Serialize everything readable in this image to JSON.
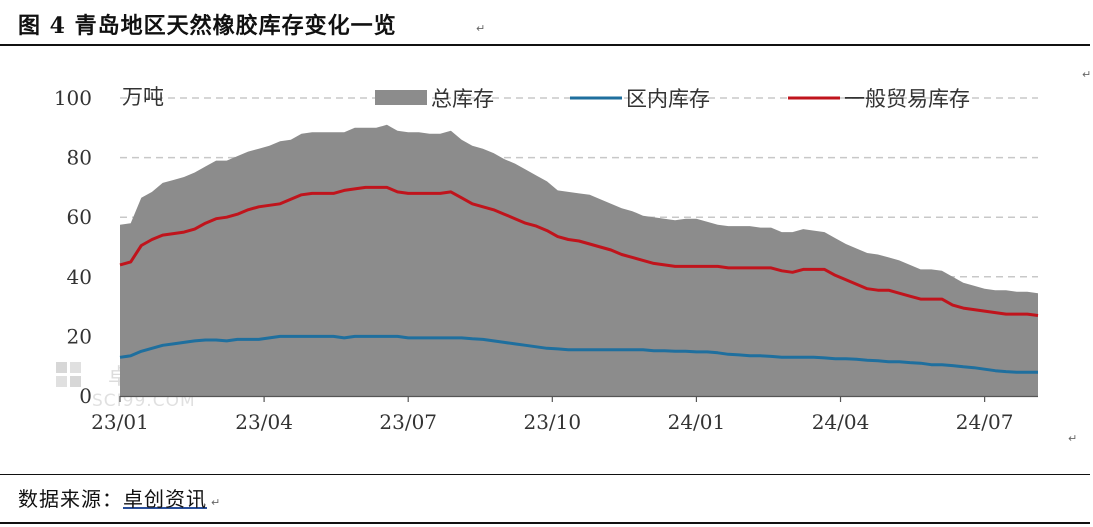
{
  "header": {
    "title": "图 4  青岛地区天然橡胶库存变化一览"
  },
  "footer": {
    "source_label": "数据来源：",
    "source_org": "卓创资讯"
  },
  "watermark": {
    "text": "SCI99.COM",
    "char": "卓"
  },
  "chart_data": {
    "type": "area",
    "unit_label": "万吨",
    "ylim": [
      0,
      100
    ],
    "yticks": [
      "0",
      "20",
      "40",
      "60",
      "80",
      "100"
    ],
    "xticks": [
      "23/01",
      "23/04",
      "23/07",
      "23/10",
      "24/01",
      "24/04",
      "24/07"
    ],
    "grid": true,
    "legend_position": "top",
    "series": [
      {
        "name": "总库存",
        "kind": "area",
        "color": "#8c8c8c",
        "values": [
          57.5,
          58,
          66.5,
          68.5,
          71.5,
          72.5,
          73.5,
          75,
          77,
          79,
          79,
          80.5,
          82,
          83,
          84,
          85.5,
          86,
          88,
          88.5,
          88.5,
          88.5,
          88.5,
          90,
          90,
          90,
          91,
          89,
          88.5,
          88.5,
          88,
          88,
          89,
          86,
          84,
          83,
          81.5,
          79.5,
          78,
          76,
          74,
          72,
          69,
          68.5,
          68,
          67.5,
          66,
          64.5,
          63,
          62,
          60.5,
          60,
          59.5,
          59,
          59.5,
          59.5,
          58.5,
          57.5,
          57,
          57,
          57,
          56.5,
          56.5,
          55,
          55,
          56,
          55.5,
          55,
          53,
          51,
          49.5,
          48,
          47.5,
          46.5,
          45.5,
          44,
          42.5,
          42.5,
          42,
          40,
          38,
          37,
          36,
          35.5,
          35.5,
          35,
          35,
          34.5
        ]
      },
      {
        "name": "区内库存",
        "kind": "line",
        "color": "#1f6f9e",
        "values": [
          13,
          13.5,
          15,
          16,
          17,
          17.5,
          18,
          18.5,
          18.8,
          18.8,
          18.5,
          19,
          19,
          19,
          19.5,
          20,
          20,
          20,
          20,
          20,
          20,
          19.5,
          20,
          20,
          20,
          20,
          20,
          19.5,
          19.5,
          19.5,
          19.5,
          19.5,
          19.5,
          19.2,
          19,
          18.5,
          18,
          17.5,
          17,
          16.5,
          16,
          15.8,
          15.5,
          15.5,
          15.5,
          15.5,
          15.5,
          15.5,
          15.5,
          15.5,
          15.2,
          15.2,
          15,
          15,
          14.8,
          14.8,
          14.5,
          14,
          13.8,
          13.5,
          13.5,
          13.3,
          13,
          13,
          13,
          13,
          12.8,
          12.5,
          12.5,
          12.3,
          12,
          11.8,
          11.5,
          11.5,
          11.2,
          11,
          10.5,
          10.5,
          10.2,
          9.8,
          9.5,
          9,
          8.5,
          8.2,
          8,
          8,
          8
        ]
      },
      {
        "name": "一般贸易库存",
        "kind": "line",
        "color": "#c0141c",
        "values": [
          44,
          45,
          50.5,
          52.5,
          54,
          54.5,
          55,
          56,
          58,
          59.5,
          60,
          61,
          62.5,
          63.5,
          64,
          64.5,
          66,
          67.5,
          68,
          68,
          68,
          69,
          69.5,
          70,
          70,
          70,
          68.5,
          68,
          68,
          68,
          68,
          68.5,
          66.5,
          64.5,
          63.5,
          62.5,
          61,
          59.5,
          58,
          57,
          55.5,
          53.5,
          52.5,
          52,
          51,
          50,
          49,
          47.5,
          46.5,
          45.5,
          44.5,
          44,
          43.5,
          43.5,
          43.5,
          43.5,
          43.5,
          43,
          43,
          43,
          43,
          43,
          42,
          41.5,
          42.5,
          42.5,
          42.5,
          40.5,
          39,
          37.5,
          36,
          35.5,
          35.5,
          34.5,
          33.5,
          32.5,
          32.5,
          32.5,
          30.5,
          29.5,
          29,
          28.5,
          28,
          27.5,
          27.5,
          27.5,
          27
        ]
      }
    ]
  }
}
